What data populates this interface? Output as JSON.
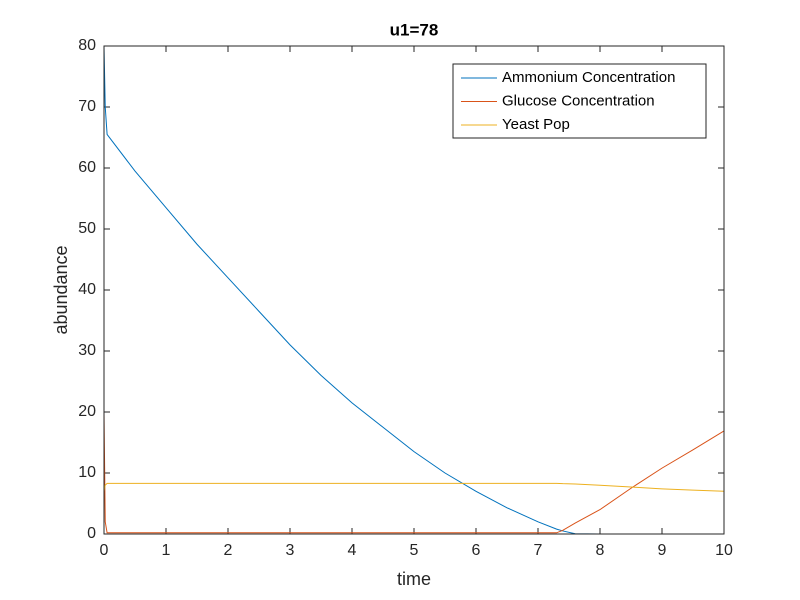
{
  "chart_data": {
    "type": "line",
    "title": "u1=78",
    "xlabel": "time",
    "ylabel": "abundance",
    "x": [
      0,
      0.02,
      0.05,
      0.5,
      1,
      1.5,
      2,
      2.5,
      3,
      3.5,
      4,
      4.5,
      5,
      5.5,
      6,
      6.5,
      7,
      7.3,
      7.4,
      7.6,
      8,
      8.5,
      9,
      9.5,
      10
    ],
    "series": [
      {
        "name": "Ammonium Concentration",
        "color": "#0072bd",
        "values": [
          80,
          70,
          65.5,
          59.5,
          53.5,
          47.5,
          42,
          36.5,
          31,
          26,
          21.5,
          17.5,
          13.5,
          10,
          7,
          4.3,
          2,
          0.8,
          0.5,
          0.05,
          0,
          0,
          0,
          0,
          0
        ]
      },
      {
        "name": "Glucose Concentration",
        "color": "#d95319",
        "values": [
          20,
          2,
          0.2,
          0.2,
          0.2,
          0.2,
          0.2,
          0.2,
          0.2,
          0.2,
          0.2,
          0.2,
          0.2,
          0.2,
          0.2,
          0.2,
          0.2,
          0.2,
          0.6,
          1.8,
          4,
          7.5,
          10.8,
          13.8,
          16.9
        ]
      },
      {
        "name": "Yeast Pop",
        "color": "#edb120",
        "values": [
          7,
          8,
          8.3,
          8.3,
          8.3,
          8.3,
          8.3,
          8.3,
          8.3,
          8.3,
          8.3,
          8.3,
          8.3,
          8.3,
          8.3,
          8.3,
          8.3,
          8.3,
          8.25,
          8.2,
          8.0,
          7.7,
          7.4,
          7.2,
          7.0
        ]
      }
    ],
    "xlim": [
      0,
      10
    ],
    "xticks": [
      0,
      1,
      2,
      3,
      4,
      5,
      6,
      7,
      8,
      9,
      10
    ],
    "ylim": [
      0,
      80
    ],
    "yticks": [
      0,
      10,
      20,
      30,
      40,
      50,
      60,
      70,
      80
    ],
    "legend": "northeast"
  }
}
